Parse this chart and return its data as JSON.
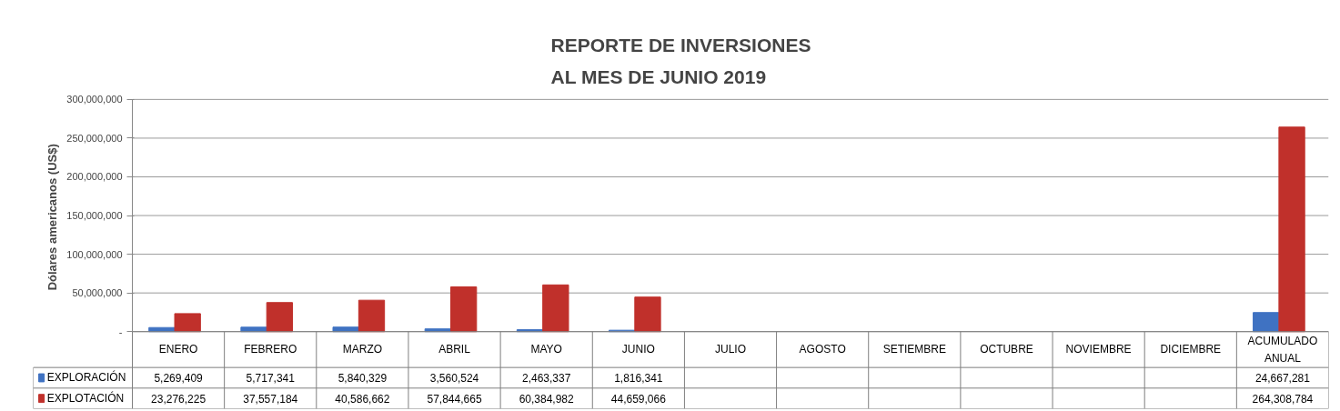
{
  "chart_data": {
    "type": "bar",
    "title": "REPORTE DE INVERSIONES\nAL MES DE JUNIO 2019",
    "ylabel": "Dólares  americanos (US$)",
    "categories": [
      "ENERO",
      "FEBRERO",
      "MARZO",
      "ABRIL",
      "MAYO",
      "JUNIO",
      "JULIO",
      "AGOSTO",
      "SETIEMBRE",
      "OCTUBRE",
      "NOVIEMBRE",
      "DICIEMBRE",
      "ACUMULADO ANUAL"
    ],
    "series": [
      {
        "name": "EXPLORACIÓN",
        "color": "#3f72c2",
        "values": [
          5269409,
          5717341,
          5840329,
          3560524,
          2463337,
          1816341,
          null,
          null,
          null,
          null,
          null,
          null,
          24667281
        ],
        "value_labels": [
          "5,269,409",
          "5,717,341",
          "5,840,329",
          "3,560,524",
          "2,463,337",
          "1,816,341",
          null,
          null,
          null,
          null,
          null,
          null,
          "24,667,281"
        ]
      },
      {
        "name": "EXPLOTACIÓN",
        "color": "#c0302b",
        "values": [
          23276225,
          37557184,
          40586662,
          57844665,
          60384982,
          44659066,
          null,
          null,
          null,
          null,
          null,
          null,
          264308784
        ],
        "value_labels": [
          "23,276,225",
          "37,557,184",
          "40,586,662",
          "57,844,665",
          "60,384,982",
          "44,659,066",
          null,
          null,
          null,
          null,
          null,
          null,
          "264,308,784"
        ]
      }
    ],
    "ylim": [
      0,
      300000000
    ],
    "yticks": [
      {
        "value": 0,
        "label": "-"
      },
      {
        "value": 50000000,
        "label": "50,000,000"
      },
      {
        "value": 100000000,
        "label": "100,000,000"
      },
      {
        "value": 150000000,
        "label": "150,000,000"
      },
      {
        "value": 200000000,
        "label": "200,000,000"
      },
      {
        "value": 250000000,
        "label": "250,000,000"
      },
      {
        "value": 300000000,
        "label": "300,000,000"
      }
    ],
    "grid": "y",
    "legend": "bottom left"
  }
}
